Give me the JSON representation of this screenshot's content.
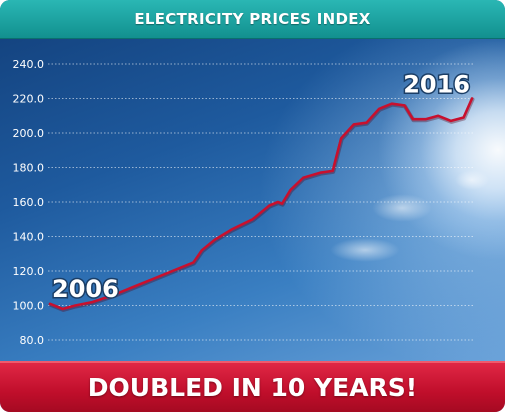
{
  "header": {
    "title": "ELECTRICITY PRICES INDEX"
  },
  "footer": {
    "text": "DOUBLED IN 10 YEARS!"
  },
  "colors": {
    "header": "#1aa3a1",
    "footer": "#c8102e",
    "line": "#c8102e"
  },
  "chart_data": {
    "type": "line",
    "title": "ELECTRICITY PRICES INDEX",
    "xlabel": "",
    "ylabel": "",
    "xlim": [
      2006,
      2016
    ],
    "ylim": [
      80,
      240
    ],
    "y_ticks": [
      "80.0",
      "100.0",
      "120.0",
      "140.0",
      "160.0",
      "180.0",
      "200.0",
      "220.0",
      "240.0"
    ],
    "grid": true,
    "annotations": [
      "2006",
      "2016"
    ],
    "series": [
      {
        "x": [
          2006.0,
          2006.3,
          2006.6,
          2007.0,
          2007.5,
          2008.0,
          2008.5,
          2009.0,
          2009.4,
          2009.6,
          2009.9,
          2010.3,
          2010.8,
          2011.2,
          2011.4,
          2011.5,
          2011.7,
          2012.0,
          2012.4,
          2012.7,
          2012.9,
          2013.2,
          2013.5,
          2013.8,
          2014.1,
          2014.4,
          2014.6,
          2014.9,
          2015.2,
          2015.5,
          2015.8,
          2016.0
        ],
        "values": [
          101,
          98,
          100,
          102,
          106,
          111,
          116,
          121,
          125,
          132,
          138,
          144,
          150,
          158,
          160,
          159,
          167,
          174,
          177,
          178,
          197,
          205,
          206,
          214,
          217,
          216,
          208,
          208,
          210,
          207,
          209,
          220
        ]
      }
    ]
  }
}
